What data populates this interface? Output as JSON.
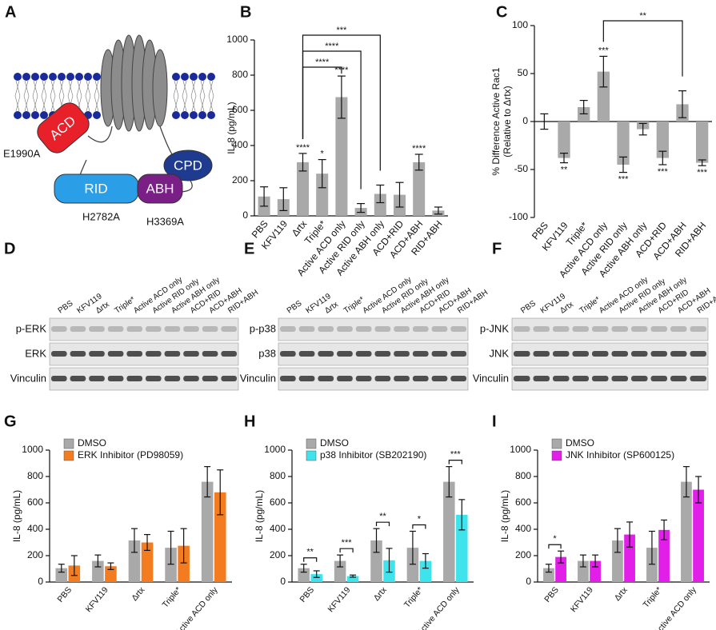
{
  "diagram": {
    "panel": "A",
    "domains": [
      "ACD",
      "CPD",
      "RID",
      "ABH"
    ],
    "mutations": [
      "E1990A",
      "H2782A",
      "H3369A"
    ]
  },
  "blots": [
    {
      "panel": "D",
      "lanes": [
        "PBS",
        "KFV119",
        "Δrtx",
        "Triple*",
        "Active ACD only",
        "Active RID only",
        "Active ABH only",
        "ACD+RID",
        "ACD+ABH",
        "RID+ABH"
      ],
      "rows": [
        "p-ERK",
        "ERK",
        "Vinculin"
      ]
    },
    {
      "panel": "E",
      "lanes": [
        "PBS",
        "KFV119",
        "Δrtx",
        "Triple*",
        "Active ACD only",
        "Active RID only",
        "Active ABH only",
        "ACD+RID",
        "ACD+ABH",
        "RID+ABH"
      ],
      "rows": [
        "p-p38",
        "p38",
        "Vinculin"
      ]
    },
    {
      "panel": "F",
      "lanes": [
        "PBS",
        "KFV119",
        "Δrtx",
        "Triple*",
        "Active ACD only",
        "Active RID only",
        "Active ABH only",
        "ACD+RID",
        "ACD+ABH",
        "RID+ABH"
      ],
      "rows": [
        "p-JNK",
        "JNK",
        "Vinculin"
      ]
    }
  ],
  "chart_data": [
    {
      "panel": "B",
      "type": "bar",
      "y_label": [
        "IL-8 (pg/mL)"
      ],
      "categories": [
        "PBS",
        "KFV119",
        "Δrtx",
        "Triple*",
        "Active ACD only",
        "Active RID only",
        "Active ABH only",
        "ACD+RID",
        "ACD+ABH",
        "RID+ABH"
      ],
      "values": [
        110,
        95,
        305,
        240,
        675,
        45,
        125,
        120,
        305,
        30
      ],
      "errors": [
        55,
        65,
        50,
        80,
        120,
        25,
        50,
        70,
        45,
        20
      ],
      "color": "#a9a9a9",
      "ylim": [
        0,
        1000
      ],
      "yticks": [
        0,
        200,
        400,
        600,
        800,
        1000
      ],
      "significance": [
        null,
        null,
        "****",
        "*",
        "****",
        null,
        null,
        null,
        "****",
        null
      ],
      "brackets": [
        {
          "from": 2,
          "to": 6,
          "label": "***"
        },
        {
          "from": 2,
          "to": 5,
          "label": "****"
        },
        {
          "from": 2,
          "to": 4,
          "label": "****"
        }
      ]
    },
    {
      "panel": "C",
      "type": "bar",
      "y_label": [
        "% Difference Active Rac1",
        "(Relative to Δrtx)"
      ],
      "categories": [
        "PBS",
        "KFV119",
        "Triple*",
        "Active ACD only",
        "Active RID only",
        "Active ABH only",
        "ACD+RID",
        "ACD+ABH",
        "RID+ABH"
      ],
      "values": [
        0,
        -38,
        15,
        52,
        -45,
        -8,
        -38,
        18,
        -43
      ],
      "errors": [
        8,
        5,
        7,
        16,
        8,
        6,
        7,
        14,
        3
      ],
      "color": "#a9a9a9",
      "ylim": [
        -100,
        100
      ],
      "yticks": [
        -100,
        -50,
        0,
        50,
        100
      ],
      "significance": [
        null,
        "**",
        null,
        "***",
        "***",
        null,
        "***",
        null,
        "***"
      ],
      "brackets": [
        {
          "from": 3,
          "to": 7,
          "label": "**"
        }
      ]
    },
    {
      "panel": "G",
      "type": "grouped_bar",
      "y_label": [
        "IL-8 (pg/mL)"
      ],
      "legend": "upper left",
      "categories": [
        "PBS",
        "KFV119",
        "Δrtx",
        "Triple*",
        "Active ACD only"
      ],
      "series": [
        {
          "name": "DMSO",
          "color": "#a9a9a9",
          "values": [
            105,
            160,
            315,
            260,
            760
          ],
          "errors": [
            30,
            45,
            90,
            125,
            115
          ]
        },
        {
          "name": "ERK Inhibitor (PD98059)",
          "color": "#f47c20",
          "values": [
            125,
            120,
            300,
            275,
            680
          ],
          "errors": [
            75,
            25,
            60,
            130,
            170
          ]
        }
      ],
      "ylim": [
        0,
        1000
      ],
      "yticks": [
        0,
        200,
        400,
        600,
        800,
        1000
      ],
      "significance": [
        null,
        null,
        null,
        null,
        null
      ]
    },
    {
      "panel": "H",
      "type": "grouped_bar",
      "y_label": [
        "IL-8 (pg/mL)"
      ],
      "legend": "upper left",
      "categories": [
        "PBS",
        "KFV119",
        "Δrtx",
        "Triple*",
        "Active ACD only"
      ],
      "series": [
        {
          "name": "DMSO",
          "color": "#a9a9a9",
          "values": [
            105,
            160,
            315,
            260,
            760
          ],
          "errors": [
            30,
            45,
            90,
            125,
            115
          ]
        },
        {
          "name": "p38 Inhibitor (SB202190)",
          "color": "#3fe3ec",
          "values": [
            60,
            45,
            165,
            160,
            510
          ],
          "errors": [
            25,
            8,
            90,
            55,
            115
          ]
        }
      ],
      "ylim": [
        0,
        1000
      ],
      "yticks": [
        0,
        200,
        400,
        600,
        800,
        1000
      ],
      "significance": [
        "**",
        "***",
        "**",
        "*",
        "***"
      ]
    },
    {
      "panel": "I",
      "type": "grouped_bar",
      "y_label": [
        "IL-8 (pg/mL)"
      ],
      "legend": "upper left",
      "categories": [
        "PBS",
        "KFV119",
        "Δrtx",
        "Triple*",
        "Active ACD only"
      ],
      "series": [
        {
          "name": "DMSO",
          "color": "#a9a9a9",
          "values": [
            105,
            160,
            315,
            260,
            760
          ],
          "errors": [
            30,
            45,
            90,
            125,
            115
          ]
        },
        {
          "name": "JNK Inhibitor (SP600125)",
          "color": "#e21fe8",
          "values": [
            190,
            160,
            360,
            395,
            700
          ],
          "errors": [
            45,
            45,
            95,
            75,
            100
          ]
        }
      ],
      "ylim": [
        0,
        1000
      ],
      "yticks": [
        0,
        200,
        400,
        600,
        800,
        1000
      ],
      "significance": [
        "*",
        null,
        null,
        null,
        null
      ]
    }
  ]
}
